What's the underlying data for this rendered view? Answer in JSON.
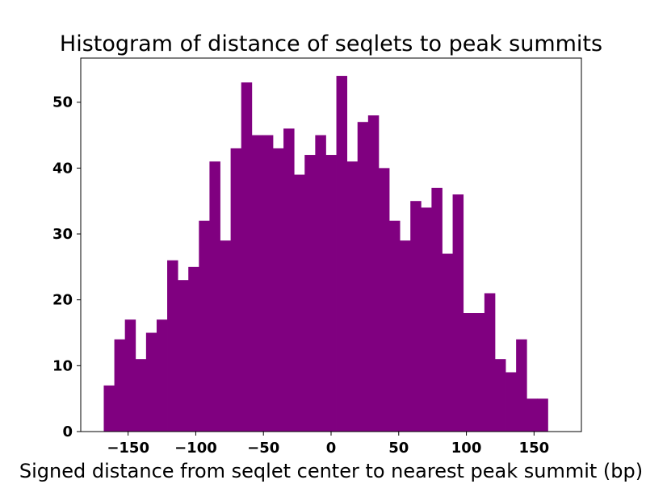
{
  "chart_data": {
    "type": "bar",
    "title": "Histogram of distance of seqlets to peak summits",
    "xlabel": "Signed distance from seqlet center to nearest peak summit (bp)",
    "ylabel": "",
    "bar_color": "#800080",
    "xlim": [
      -185,
      185
    ],
    "ylim": [
      0,
      56.7
    ],
    "xticks": [
      -150,
      -100,
      -50,
      0,
      50,
      100,
      150
    ],
    "xtick_labels": [
      "−150",
      "−100",
      "−50",
      "0",
      "50",
      "100",
      "150"
    ],
    "yticks": [
      0,
      10,
      20,
      30,
      40,
      50
    ],
    "ytick_labels": [
      "0",
      "10",
      "20",
      "30",
      "40",
      "50"
    ],
    "bin_range": [
      -168,
      168
    ],
    "bins": 43,
    "values": [
      7,
      14,
      17,
      11,
      15,
      17,
      26,
      23,
      25,
      32,
      41,
      29,
      43,
      53,
      45,
      45,
      43,
      46,
      39,
      42,
      45,
      42,
      54,
      41,
      47,
      48,
      40,
      32,
      29,
      35,
      34,
      37,
      27,
      36,
      18,
      18,
      21,
      11,
      9,
      14,
      5,
      5,
      0
    ],
    "grid": false,
    "legend": "none"
  }
}
